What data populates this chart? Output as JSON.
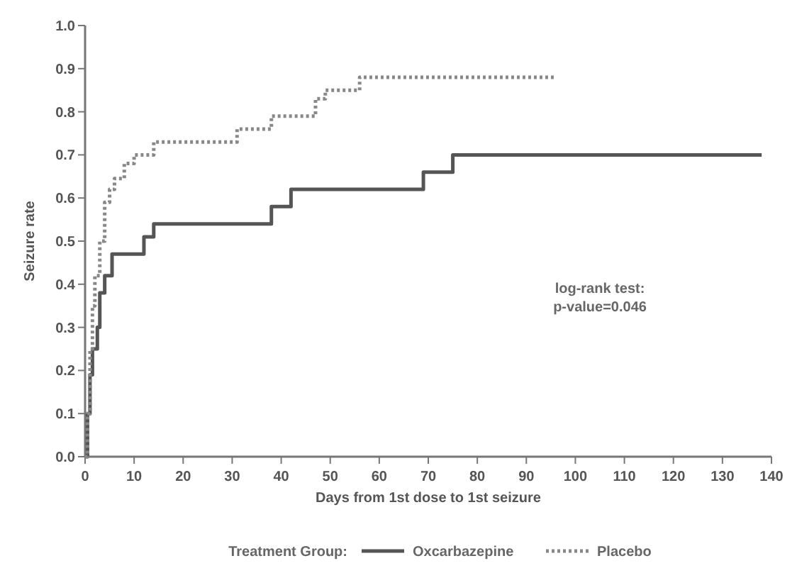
{
  "chart_data": {
    "type": "step",
    "xlabel": "Days from 1st dose to 1st seizure",
    "ylabel": "Seizure rate",
    "legend_title": "Treatment Group:",
    "legend": "bottom",
    "annotations": [
      "log-rank test:\np-value=0.046"
    ],
    "xlim": [
      0,
      140
    ],
    "xticks": [
      0,
      10,
      20,
      30,
      40,
      50,
      60,
      70,
      80,
      90,
      100,
      110,
      120,
      130,
      140
    ],
    "ylim": [
      0,
      1
    ],
    "yticks": [
      {
        "value": 0,
        "label": "0.0"
      },
      0.1,
      0.2,
      0.3,
      0.4,
      0.5,
      0.6,
      0.7,
      0.8,
      0.9,
      {
        "value": 1,
        "label": "1.0"
      }
    ],
    "series": [
      {
        "name": "Oxcarbazepine",
        "color": "#555555",
        "line_style": "solid",
        "x": [
          0,
          0.5,
          1,
          1.5,
          2.5,
          3,
          4,
          5.5,
          10.5,
          12,
          14,
          38,
          42,
          69,
          75,
          138
        ],
        "values": [
          0,
          0.1,
          0.19,
          0.25,
          0.3,
          0.38,
          0.42,
          0.47,
          0.47,
          0.51,
          0.54,
          0.58,
          0.62,
          0.66,
          0.7,
          0.7
        ]
      },
      {
        "name": "Placebo",
        "color": "#888888",
        "line_style": "dotted",
        "x": [
          0,
          0.5,
          1,
          1.5,
          2,
          3,
          4,
          5,
          6,
          8,
          10,
          14,
          31,
          38,
          47,
          49,
          56,
          96
        ],
        "values": [
          0,
          0.1,
          0.25,
          0.35,
          0.42,
          0.5,
          0.59,
          0.62,
          0.645,
          0.68,
          0.7,
          0.73,
          0.76,
          0.79,
          0.83,
          0.85,
          0.88,
          0.88
        ]
      }
    ]
  }
}
